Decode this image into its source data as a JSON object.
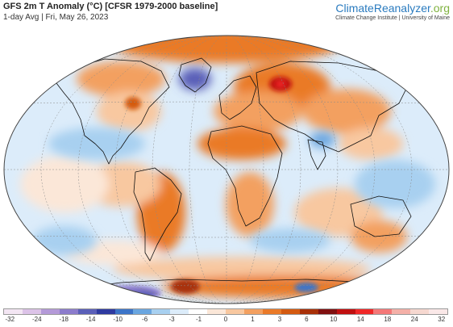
{
  "header": {
    "title": "GFS 2m T Anomaly (°C) [CFSR 1979-2000 baseline]",
    "subtitle": "1-day Avg | Fri, May 26, 2023"
  },
  "brand": {
    "name_main": "ClimateReanalyzer",
    "name_tld": ".org",
    "tagline": "Climate Change Institute | University of Maine"
  },
  "legend": {
    "tick_labels": [
      "-32",
      "-24",
      "-18",
      "-14",
      "-10",
      "-6",
      "-3",
      "-1",
      "0",
      "1",
      "3",
      "6",
      "10",
      "14",
      "18",
      "24",
      "32"
    ],
    "colors": [
      "#f3e6f3",
      "#dcc3e8",
      "#b49ad8",
      "#8c7ccc",
      "#5a5fb8",
      "#2e3aa0",
      "#3c74c8",
      "#6aa6e0",
      "#a8d0f0",
      "#dcecfa",
      "#ffffff",
      "#fbe7d8",
      "#f8c8a0",
      "#f3a060",
      "#ea7a28",
      "#d45a10",
      "#a83008",
      "#801010",
      "#c01010",
      "#f02828",
      "#f47878",
      "#f4b0a8",
      "#f6d8d0",
      "#fae8e8"
    ]
  }
}
